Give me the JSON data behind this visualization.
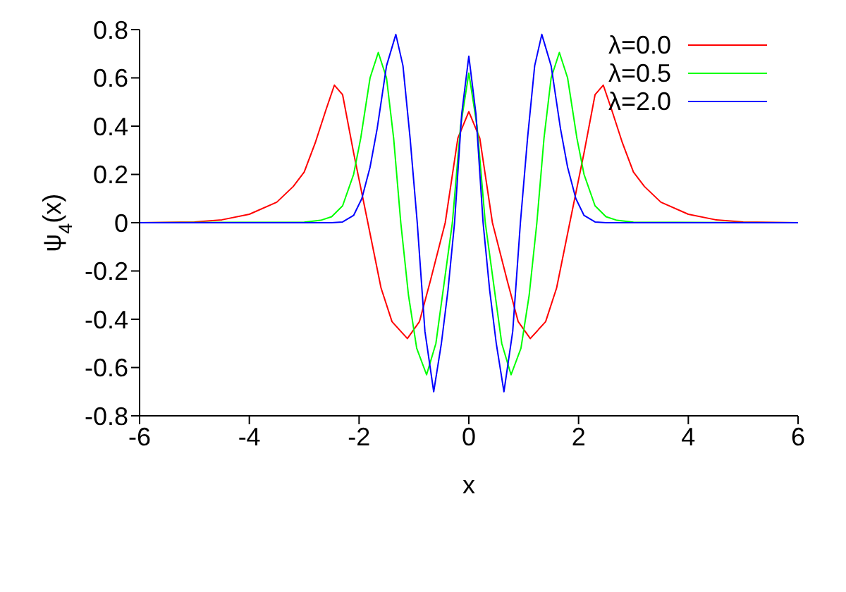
{
  "chart_data": {
    "type": "line",
    "xlabel": "x",
    "ylabel": "ψ$_{4}$(x)",
    "xlim": [
      -6,
      6
    ],
    "xticks": [
      -6,
      -4,
      -2,
      0,
      2,
      4,
      6
    ],
    "ylim": [
      -0.8,
      0.8
    ],
    "yticks": [
      -0.8,
      -0.6,
      -0.4,
      -0.2,
      0,
      0.2,
      0.4,
      0.6,
      0.8
    ],
    "grid": false,
    "legend": "top right",
    "marker": "none",
    "line_style": "solid",
    "series": [
      {
        "name": "λ=0.0",
        "color": "#ff0000",
        "x": [
          -6,
          -5,
          -4.5,
          -4,
          -3.5,
          -3.2,
          -3,
          -2.8,
          -2.6,
          -2.45,
          -2.3,
          -2.1,
          -1.84,
          -1.6,
          -1.4,
          -1.12,
          -0.9,
          -0.7,
          -0.43,
          -0.2,
          0,
          0.2,
          0.43,
          0.7,
          0.9,
          1.12,
          1.4,
          1.6,
          1.84,
          2.1,
          2.3,
          2.45,
          2.6,
          2.8,
          3,
          3.2,
          3.5,
          4,
          4.5,
          5,
          6
        ],
        "values": [
          0,
          0.003,
          0.012,
          0.035,
          0.085,
          0.15,
          0.21,
          0.33,
          0.47,
          0.57,
          0.53,
          0.29,
          0,
          -0.27,
          -0.41,
          -0.48,
          -0.41,
          -0.24,
          0,
          0.35,
          0.46,
          0.35,
          0,
          -0.24,
          -0.41,
          -0.48,
          -0.41,
          -0.27,
          0,
          0.29,
          0.53,
          0.57,
          0.47,
          0.33,
          0.21,
          0.15,
          0.085,
          0.035,
          0.012,
          0.003,
          0
        ]
      },
      {
        "name": "λ=0.5",
        "color": "#00ff00",
        "x": [
          -6,
          -3,
          -2.7,
          -2.5,
          -2.3,
          -2.1,
          -1.97,
          -1.8,
          -1.65,
          -1.5,
          -1.37,
          -1.24,
          -1.1,
          -0.95,
          -0.77,
          -0.6,
          -0.45,
          -0.3,
          -0.15,
          0,
          0.15,
          0.3,
          0.45,
          0.6,
          0.77,
          0.95,
          1.1,
          1.24,
          1.37,
          1.5,
          1.65,
          1.8,
          1.97,
          2.1,
          2.3,
          2.5,
          2.7,
          3,
          6
        ],
        "values": [
          0,
          0.002,
          0.01,
          0.025,
          0.07,
          0.2,
          0.35,
          0.6,
          0.705,
          0.6,
          0.35,
          0,
          -0.3,
          -0.52,
          -0.63,
          -0.5,
          -0.25,
          0,
          0.4,
          0.62,
          0.4,
          0,
          -0.25,
          -0.5,
          -0.63,
          -0.52,
          -0.3,
          0,
          0.35,
          0.6,
          0.705,
          0.6,
          0.35,
          0.2,
          0.07,
          0.025,
          0.01,
          0.002,
          0
        ]
      },
      {
        "name": "λ=2.0",
        "color": "#0000ff",
        "x": [
          -6,
          -2.5,
          -2.3,
          -2.1,
          -1.95,
          -1.8,
          -1.67,
          -1.5,
          -1.33,
          -1.2,
          -1.07,
          -0.94,
          -0.8,
          -0.64,
          -0.5,
          -0.38,
          -0.26,
          -0.13,
          0,
          0.13,
          0.26,
          0.38,
          0.5,
          0.64,
          0.8,
          0.94,
          1.07,
          1.2,
          1.33,
          1.5,
          1.67,
          1.8,
          1.95,
          2.1,
          2.3,
          2.5,
          6
        ],
        "values": [
          0,
          0,
          0.003,
          0.03,
          0.1,
          0.23,
          0.39,
          0.65,
          0.78,
          0.65,
          0.35,
          0,
          -0.45,
          -0.7,
          -0.5,
          -0.28,
          0,
          0.45,
          0.69,
          0.45,
          0,
          -0.28,
          -0.5,
          -0.7,
          -0.45,
          0,
          0.35,
          0.65,
          0.78,
          0.65,
          0.39,
          0.23,
          0.1,
          0.03,
          0.003,
          0,
          0
        ]
      }
    ]
  }
}
